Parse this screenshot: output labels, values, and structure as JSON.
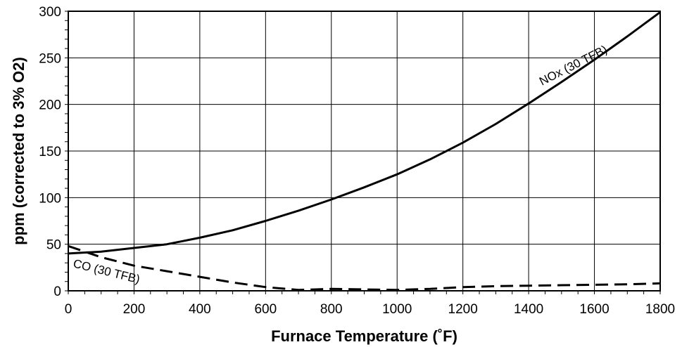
{
  "chart_data": {
    "type": "line",
    "title": "",
    "xlabel": "Furnace Temperature (˚F)",
    "ylabel": "ppm (corrected to 3% O2)",
    "xlim": [
      0,
      1800
    ],
    "ylim": [
      0,
      300
    ],
    "x_ticks": [
      0,
      200,
      400,
      600,
      800,
      1000,
      1200,
      1400,
      1600,
      1800
    ],
    "y_ticks": [
      0,
      50,
      100,
      150,
      200,
      250,
      300
    ],
    "grid": true,
    "series": [
      {
        "name": "NOx (30 TFB)",
        "style": "solid",
        "color": "#000000",
        "points": [
          [
            0,
            40
          ],
          [
            100,
            42
          ],
          [
            200,
            46
          ],
          [
            300,
            50
          ],
          [
            400,
            57
          ],
          [
            500,
            65
          ],
          [
            600,
            75
          ],
          [
            700,
            86
          ],
          [
            800,
            98
          ],
          [
            900,
            111
          ],
          [
            1000,
            125
          ],
          [
            1100,
            141
          ],
          [
            1200,
            159
          ],
          [
            1300,
            179
          ],
          [
            1400,
            201
          ],
          [
            1500,
            224
          ],
          [
            1600,
            248
          ],
          [
            1700,
            273
          ],
          [
            1800,
            299
          ]
        ]
      },
      {
        "name": "CO (30 TFB)",
        "style": "dashed",
        "color": "#000000",
        "points": [
          [
            0,
            48
          ],
          [
            100,
            36
          ],
          [
            200,
            27
          ],
          [
            300,
            21
          ],
          [
            400,
            15
          ],
          [
            500,
            9
          ],
          [
            600,
            4
          ],
          [
            700,
            1
          ],
          [
            800,
            2
          ],
          [
            900,
            1.5
          ],
          [
            1000,
            1
          ],
          [
            1100,
            2
          ],
          [
            1200,
            4
          ],
          [
            1300,
            5
          ],
          [
            1400,
            5.5
          ],
          [
            1500,
            6
          ],
          [
            1600,
            6.5
          ],
          [
            1700,
            7
          ],
          [
            1800,
            8
          ]
        ]
      }
    ]
  }
}
